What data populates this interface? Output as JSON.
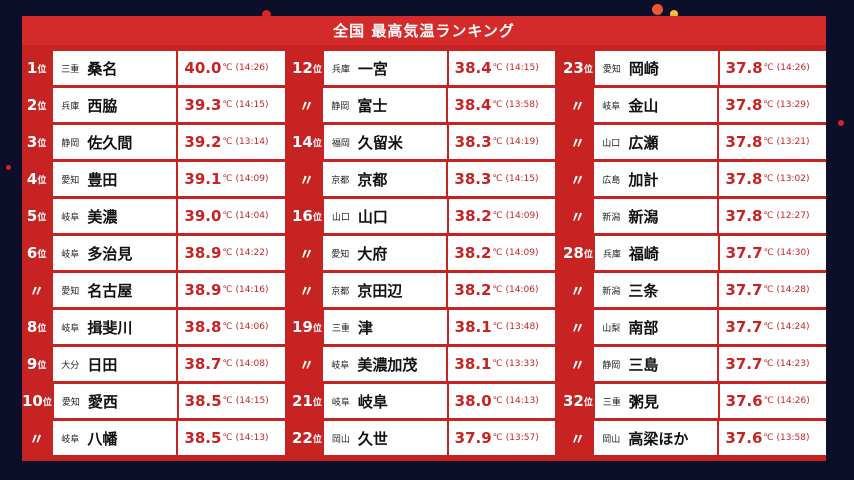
{
  "title": "全国 最高気温ランキング",
  "unit": "℃",
  "colors": {
    "accent": "#d42a2a",
    "background": "#0b0f2a"
  },
  "columns": [
    [
      {
        "rank": "1",
        "suffix": "位",
        "pref": "三重",
        "city": "桑名",
        "temp": "40.0",
        "time": "(14:26)"
      },
      {
        "rank": "2",
        "suffix": "位",
        "pref": "兵庫",
        "city": "西脇",
        "temp": "39.3",
        "time": "(14:15)"
      },
      {
        "rank": "3",
        "suffix": "位",
        "pref": "静岡",
        "city": "佐久間",
        "temp": "39.2",
        "time": "(13:14)"
      },
      {
        "rank": "4",
        "suffix": "位",
        "pref": "愛知",
        "city": "豊田",
        "temp": "39.1",
        "time": "(14:09)"
      },
      {
        "rank": "5",
        "suffix": "位",
        "pref": "岐阜",
        "city": "美濃",
        "temp": "39.0",
        "time": "(14:04)"
      },
      {
        "rank": "6",
        "suffix": "位",
        "pref": "岐阜",
        "city": "多治見",
        "temp": "38.9",
        "time": "(14:22)"
      },
      {
        "rank": "〃",
        "suffix": "",
        "pref": "愛知",
        "city": "名古屋",
        "temp": "38.9",
        "time": "(14:16)"
      },
      {
        "rank": "8",
        "suffix": "位",
        "pref": "岐阜",
        "city": "揖斐川",
        "temp": "38.8",
        "time": "(14:06)"
      },
      {
        "rank": "9",
        "suffix": "位",
        "pref": "大分",
        "city": "日田",
        "temp": "38.7",
        "time": "(14:08)"
      },
      {
        "rank": "10",
        "suffix": "位",
        "pref": "愛知",
        "city": "愛西",
        "temp": "38.5",
        "time": "(14:15)"
      },
      {
        "rank": "〃",
        "suffix": "",
        "pref": "岐阜",
        "city": "八幡",
        "temp": "38.5",
        "time": "(14:13)"
      }
    ],
    [
      {
        "rank": "12",
        "suffix": "位",
        "pref": "兵庫",
        "city": "一宮",
        "temp": "38.4",
        "time": "(14:15)"
      },
      {
        "rank": "〃",
        "suffix": "",
        "pref": "静岡",
        "city": "富士",
        "temp": "38.4",
        "time": "(13:58)"
      },
      {
        "rank": "14",
        "suffix": "位",
        "pref": "福岡",
        "city": "久留米",
        "temp": "38.3",
        "time": "(14:19)"
      },
      {
        "rank": "〃",
        "suffix": "",
        "pref": "京都",
        "city": "京都",
        "temp": "38.3",
        "time": "(14:15)"
      },
      {
        "rank": "16",
        "suffix": "位",
        "pref": "山口",
        "city": "山口",
        "temp": "38.2",
        "time": "(14:09)"
      },
      {
        "rank": "〃",
        "suffix": "",
        "pref": "愛知",
        "city": "大府",
        "temp": "38.2",
        "time": "(14:09)"
      },
      {
        "rank": "〃",
        "suffix": "",
        "pref": "京都",
        "city": "京田辺",
        "temp": "38.2",
        "time": "(14:06)"
      },
      {
        "rank": "19",
        "suffix": "位",
        "pref": "三重",
        "city": "津",
        "temp": "38.1",
        "time": "(13:48)"
      },
      {
        "rank": "〃",
        "suffix": "",
        "pref": "岐阜",
        "city": "美濃加茂",
        "temp": "38.1",
        "time": "(13:33)"
      },
      {
        "rank": "21",
        "suffix": "位",
        "pref": "岐阜",
        "city": "岐阜",
        "temp": "38.0",
        "time": "(14:13)"
      },
      {
        "rank": "22",
        "suffix": "位",
        "pref": "岡山",
        "city": "久世",
        "temp": "37.9",
        "time": "(13:57)"
      }
    ],
    [
      {
        "rank": "23",
        "suffix": "位",
        "pref": "愛知",
        "city": "岡崎",
        "temp": "37.8",
        "time": "(14:26)"
      },
      {
        "rank": "〃",
        "suffix": "",
        "pref": "岐阜",
        "city": "金山",
        "temp": "37.8",
        "time": "(13:29)"
      },
      {
        "rank": "〃",
        "suffix": "",
        "pref": "山口",
        "city": "広瀬",
        "temp": "37.8",
        "time": "(13:21)"
      },
      {
        "rank": "〃",
        "suffix": "",
        "pref": "広島",
        "city": "加計",
        "temp": "37.8",
        "time": "(13:02)"
      },
      {
        "rank": "〃",
        "suffix": "",
        "pref": "新潟",
        "city": "新潟",
        "temp": "37.8",
        "time": "(12:27)"
      },
      {
        "rank": "28",
        "suffix": "位",
        "pref": "兵庫",
        "city": "福崎",
        "temp": "37.7",
        "time": "(14:30)"
      },
      {
        "rank": "〃",
        "suffix": "",
        "pref": "新潟",
        "city": "三条",
        "temp": "37.7",
        "time": "(14:28)"
      },
      {
        "rank": "〃",
        "suffix": "",
        "pref": "山梨",
        "city": "南部",
        "temp": "37.7",
        "time": "(14:24)"
      },
      {
        "rank": "〃",
        "suffix": "",
        "pref": "静岡",
        "city": "三島",
        "temp": "37.7",
        "time": "(14:23)"
      },
      {
        "rank": "32",
        "suffix": "位",
        "pref": "三重",
        "city": "粥見",
        "temp": "37.6",
        "time": "(14:26)"
      },
      {
        "rank": "〃",
        "suffix": "",
        "pref": "岡山",
        "city": "高梁ほか",
        "temp": "37.6",
        "time": "(13:58)"
      }
    ]
  ]
}
